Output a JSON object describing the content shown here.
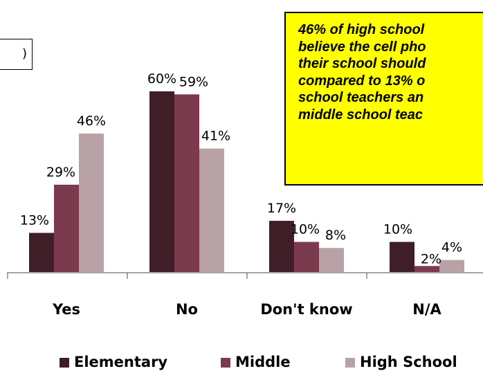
{
  "chart_data": {
    "type": "bar",
    "categories": [
      "Yes",
      "No",
      "Don't know",
      "N/A"
    ],
    "series": [
      {
        "name": "Elementary",
        "color": "#3f1e28",
        "values": [
          13,
          60,
          17,
          10
        ],
        "labels": [
          "13%",
          "60%",
          "17%",
          "10%"
        ]
      },
      {
        "name": "Middle",
        "color": "#7b3a4d",
        "values": [
          29,
          59,
          10,
          2
        ],
        "labels": [
          "29%",
          "59%",
          "10%",
          "2%"
        ]
      },
      {
        "name": "High School",
        "color": "#b8a2a5",
        "values": [
          46,
          41,
          8,
          4
        ],
        "labels": [
          "46%",
          "41%",
          "8%",
          "4%"
        ]
      }
    ],
    "ylim": [
      0,
      60
    ],
    "legend_position": "bottom",
    "grid": false
  },
  "callout": {
    "lines": [
      "46% of high school",
      "believe the cell pho",
      "their school should",
      "compared to 13% o",
      "school teachers an",
      "middle school teac"
    ],
    "background": "#ffff00"
  },
  "fragment_box": {
    "text": ")"
  }
}
